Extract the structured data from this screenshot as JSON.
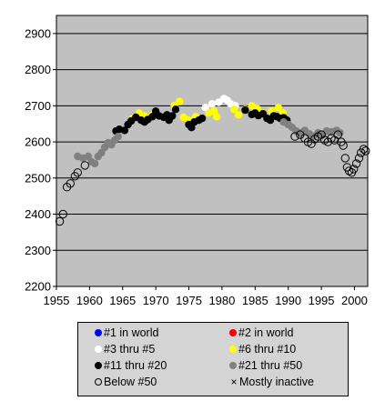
{
  "chart_data": {
    "type": "scatter",
    "title": "",
    "xlabel": "",
    "ylabel": "",
    "xlim": [
      1955,
      2002
    ],
    "ylim": [
      2200,
      2950
    ],
    "x_ticks": [
      "1955",
      "1960",
      "1965",
      "1970",
      "1975",
      "1980",
      "1985",
      "1990",
      "1995",
      "2000"
    ],
    "y_ticks": [
      "2200",
      "2300",
      "2400",
      "2500",
      "2600",
      "2700",
      "2800",
      "2900"
    ],
    "grid": "horizontal",
    "plot_background": "#c0c0c0",
    "legend_position": "bottom",
    "legend": [
      {
        "label": "#1 in world",
        "marker": "filled",
        "color": "#0000ff"
      },
      {
        "label": "#2 in world",
        "marker": "filled",
        "color": "#ff0000"
      },
      {
        "label": "#3 thru #5",
        "marker": "filled",
        "color": "#ffffff"
      },
      {
        "label": "#6 thru #10",
        "marker": "filled",
        "color": "#ffff00"
      },
      {
        "label": "#11 thru #20",
        "marker": "filled",
        "color": "#000000"
      },
      {
        "label": "#21 thru #50",
        "marker": "filled",
        "color": "#808080"
      },
      {
        "label": "Below #50",
        "marker": "open",
        "color": "#000000"
      },
      {
        "label": "Mostly inactive",
        "marker": "x",
        "color": "#000000"
      }
    ],
    "series": [
      {
        "color": "#ffffff",
        "marker": "filled",
        "points": [
          [
            1977.5,
            2695
          ],
          [
            1978.5,
            2705
          ],
          [
            1979.5,
            2710
          ],
          [
            1980.3,
            2720
          ],
          [
            1980.8,
            2715
          ],
          [
            1981.3,
            2705
          ],
          [
            1982.0,
            2700
          ]
        ]
      },
      {
        "color": "#ffff00",
        "marker": "filled",
        "points": [
          [
            1966.5,
            2665
          ],
          [
            1967.5,
            2680
          ],
          [
            1968.3,
            2672
          ],
          [
            1969.5,
            2675
          ],
          [
            1970.5,
            2670
          ],
          [
            1971.5,
            2668
          ],
          [
            1972.8,
            2700
          ],
          [
            1973.6,
            2712
          ],
          [
            1974.2,
            2668
          ],
          [
            1975.0,
            2660
          ],
          [
            1976.0,
            2670
          ],
          [
            1978.0,
            2680
          ],
          [
            1978.8,
            2685
          ],
          [
            1979.2,
            2670
          ],
          [
            1981.8,
            2690
          ],
          [
            1982.5,
            2675
          ],
          [
            1983.5,
            2690
          ],
          [
            1984.5,
            2700
          ],
          [
            1985.3,
            2692
          ],
          [
            1986.2,
            2680
          ],
          [
            1987.5,
            2685
          ],
          [
            1988.5,
            2695
          ],
          [
            1989.2,
            2680
          ]
        ]
      },
      {
        "color": "#000000",
        "marker": "filled",
        "points": [
          [
            1964.0,
            2630
          ],
          [
            1964.5,
            2635
          ],
          [
            1965.3,
            2632
          ],
          [
            1965.8,
            2648
          ],
          [
            1966.3,
            2658
          ],
          [
            1967.0,
            2668
          ],
          [
            1967.8,
            2660
          ],
          [
            1968.3,
            2655
          ],
          [
            1968.8,
            2662
          ],
          [
            1969.5,
            2670
          ],
          [
            1970.0,
            2685
          ],
          [
            1970.5,
            2672
          ],
          [
            1971.2,
            2668
          ],
          [
            1971.7,
            2675
          ],
          [
            1972.0,
            2660
          ],
          [
            1972.5,
            2672
          ],
          [
            1973.0,
            2690
          ],
          [
            1975.0,
            2648
          ],
          [
            1975.4,
            2640
          ],
          [
            1975.8,
            2655
          ],
          [
            1976.5,
            2660
          ],
          [
            1977.0,
            2665
          ],
          [
            1983.5,
            2688
          ],
          [
            1984.5,
            2676
          ],
          [
            1985.0,
            2680
          ],
          [
            1985.5,
            2673
          ],
          [
            1986.2,
            2678
          ],
          [
            1986.8,
            2665
          ],
          [
            1987.3,
            2660
          ],
          [
            1987.8,
            2672
          ],
          [
            1988.3,
            2670
          ],
          [
            1988.8,
            2665
          ],
          [
            1989.3,
            2667
          ],
          [
            1989.8,
            2660
          ]
        ]
      },
      {
        "color": "#808080",
        "marker": "filled",
        "points": [
          [
            1958.2,
            2560
          ],
          [
            1959.0,
            2555
          ],
          [
            1959.8,
            2560
          ],
          [
            1960.3,
            2545
          ],
          [
            1960.8,
            2540
          ],
          [
            1961.3,
            2560
          ],
          [
            1961.8,
            2570
          ],
          [
            1962.3,
            2585
          ],
          [
            1962.8,
            2598
          ],
          [
            1963.3,
            2592
          ],
          [
            1963.8,
            2605
          ],
          [
            1964.3,
            2615
          ],
          [
            1989.3,
            2655
          ],
          [
            1990.0,
            2648
          ],
          [
            1990.6,
            2640
          ],
          [
            1991.2,
            2630
          ],
          [
            1991.8,
            2625
          ],
          [
            1992.5,
            2632
          ],
          [
            1993.2,
            2622
          ],
          [
            1993.8,
            2615
          ],
          [
            1994.5,
            2625
          ],
          [
            1995.2,
            2620
          ],
          [
            1995.8,
            2630
          ],
          [
            1996.5,
            2628
          ],
          [
            1997.3,
            2632
          ],
          [
            1997.8,
            2625
          ]
        ]
      },
      {
        "color": "#000000",
        "marker": "open",
        "points": [
          [
            1955.5,
            2380
          ],
          [
            1956.0,
            2400
          ],
          [
            1956.6,
            2475
          ],
          [
            1957.1,
            2485
          ],
          [
            1957.8,
            2505
          ],
          [
            1958.2,
            2515
          ],
          [
            1959.3,
            2535
          ],
          [
            1991.0,
            2615
          ],
          [
            1991.8,
            2620
          ],
          [
            1992.5,
            2610
          ],
          [
            1993.0,
            2600
          ],
          [
            1993.5,
            2595
          ],
          [
            1994.0,
            2608
          ],
          [
            1994.5,
            2615
          ],
          [
            1995.0,
            2620
          ],
          [
            1995.5,
            2605
          ],
          [
            1996.0,
            2600
          ],
          [
            1996.5,
            2610
          ],
          [
            1997.0,
            2605
          ],
          [
            1997.5,
            2620
          ],
          [
            1998.0,
            2600
          ],
          [
            1998.3,
            2590
          ],
          [
            1998.6,
            2555
          ],
          [
            1998.9,
            2530
          ],
          [
            1999.2,
            2520
          ],
          [
            1999.6,
            2515
          ],
          [
            1999.9,
            2525
          ],
          [
            2000.3,
            2540
          ],
          [
            2000.7,
            2555
          ],
          [
            2001.0,
            2570
          ],
          [
            2001.4,
            2580
          ],
          [
            2001.7,
            2575
          ]
        ]
      }
    ]
  }
}
